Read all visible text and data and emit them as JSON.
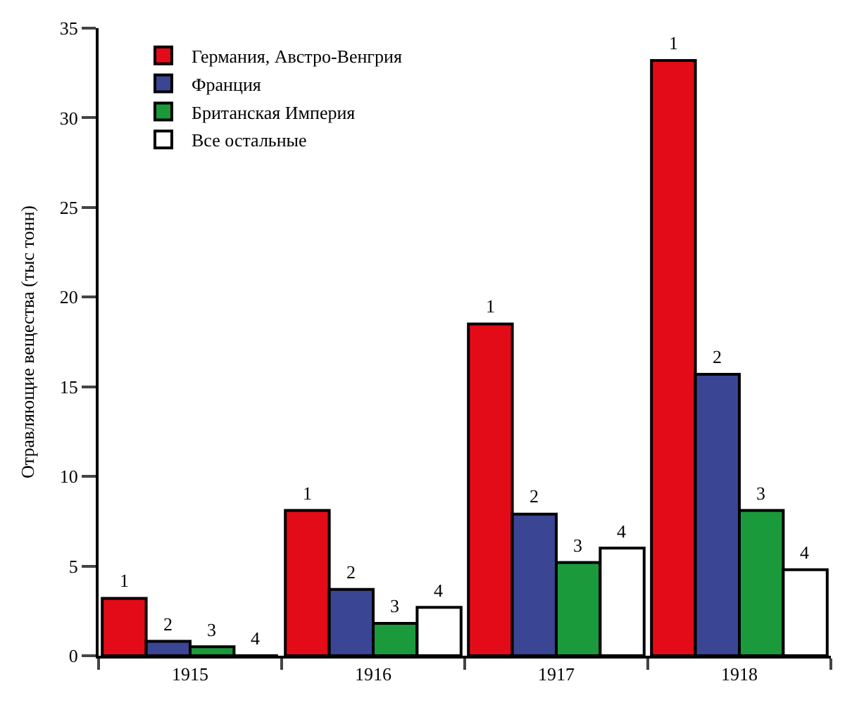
{
  "chart_data": {
    "type": "bar",
    "ylabel": "Отравляющие вещества (тыс тонн)",
    "categories": [
      "1915",
      "1916",
      "1917",
      "1918"
    ],
    "series": [
      {
        "name": "Германия, Австро-Венгрия",
        "color": "#e30b17",
        "values": [
          3.2,
          8.1,
          18.5,
          33.2
        ]
      },
      {
        "name": "Франция",
        "color": "#3a4594",
        "values": [
          0.8,
          3.7,
          7.9,
          15.7
        ]
      },
      {
        "name": "Британская Империя",
        "color": "#1a9a3a",
        "values": [
          0.5,
          1.8,
          5.2,
          8.1
        ]
      },
      {
        "name": "Все остальные",
        "color": "#ffffff",
        "values": [
          0,
          2.7,
          6.0,
          4.8
        ]
      }
    ],
    "annotations": [
      "1",
      "1",
      "1",
      "1",
      "2",
      "2",
      "2",
      "2",
      "3",
      "3",
      "3",
      "3",
      "4",
      "4",
      "4",
      "4"
    ],
    "ylim": [
      0,
      35
    ],
    "yticks": [
      0,
      5,
      10,
      15,
      20,
      25,
      30,
      35
    ],
    "legend": "top left"
  }
}
